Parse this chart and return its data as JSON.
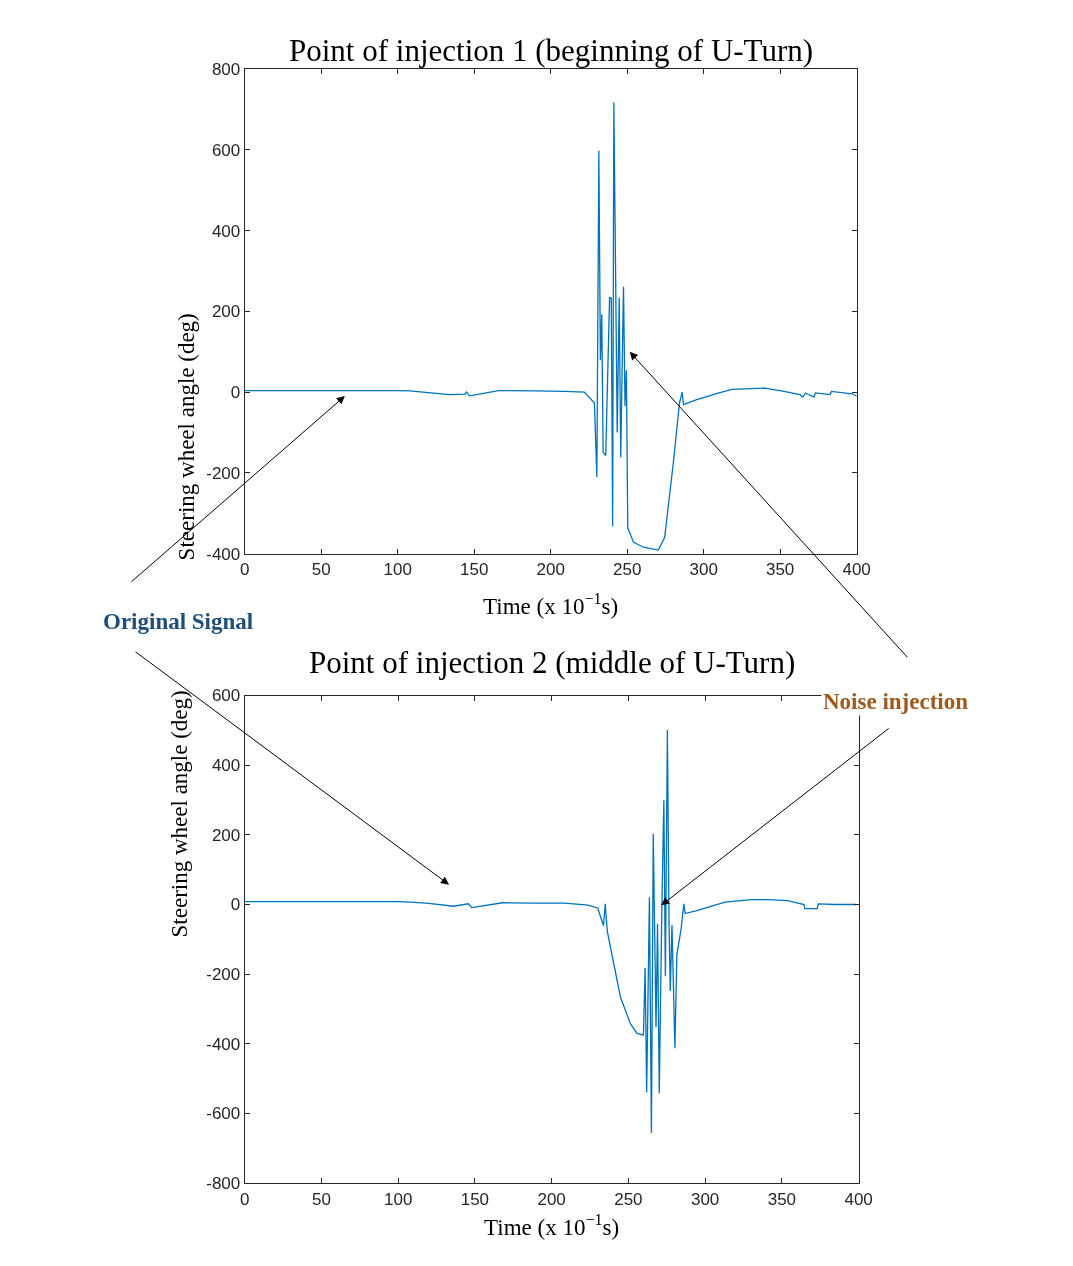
{
  "chart_data": [
    {
      "type": "line",
      "title": "Point of injection 1 (beginning of U-Turn)",
      "xlabel": "Time (x 10$^{−1}$s)",
      "ylabel": "Steering wheel angle (deg)",
      "series": [
        {
          "color": "#0072bd",
          "x": [
            0,
            50,
            100,
            108,
            120,
            134,
            144,
            145,
            147,
            166,
            190,
            209,
            222,
            228.6,
            230.2,
            231.5,
            232.5,
            233.4,
            234.3,
            236,
            238.5,
            239.6,
            240.5,
            241.3,
            243.5,
            244.8,
            245.8,
            247.6,
            248.6,
            249.5,
            250.4,
            254.2,
            260.7,
            270.3,
            274.5,
            280,
            284.2,
            286,
            286.8,
            295,
            310,
            318.5,
            340,
            352.5,
            363,
            364.8,
            366.5,
            372,
            373,
            382.7,
            383.5,
            397,
            400
          ],
          "values": [
            4,
            4,
            4,
            3,
            -1,
            -6,
            -5,
            0,
            -9,
            4,
            3,
            2,
            0,
            -27,
            -210,
            598,
            79,
            193,
            -149,
            -157,
            234,
            233,
            -332,
            717,
            -100,
            234,
            -161,
            261,
            -34,
            54,
            -336,
            -372,
            -384,
            -391,
            -360,
            -181,
            -27,
            0,
            -31,
            -19,
            -2,
            7,
            10,
            2,
            -6,
            -12,
            -2,
            -12,
            -2,
            -6,
            2,
            -4,
            -10
          ]
        }
      ],
      "xlim": [
        0,
        400
      ],
      "xticks": [
        0,
        50,
        100,
        150,
        200,
        250,
        300,
        350,
        400
      ],
      "ylim": [
        -400,
        800
      ],
      "yticks": [
        -400,
        -200,
        0,
        200,
        400,
        600,
        800
      ],
      "annotations": [
        "Original Signal",
        "Noise injection"
      ]
    },
    {
      "type": "line",
      "title": "Point of injection 2 (middle of U-Turn)",
      "xlabel": "Time (x 10$^{−1}$s)",
      "ylabel": "Steering wheel angle (deg)",
      "series": [
        {
          "color": "#0072bd",
          "x": [
            0,
            50,
            100,
            108,
            120,
            136,
            145.7,
            148,
            168,
            190,
            208.6,
            223.6,
            230,
            233.8,
            234.9,
            236.3,
            240.6,
            244.9,
            251.3,
            255.6,
            259.8,
            260.9,
            261.9,
            263.7,
            265,
            266.2,
            268,
            269,
            270.1,
            271.8,
            273.1,
            274.1,
            275.4,
            276.5,
            277.3,
            278.4,
            280.3,
            281.6,
            284.4,
            286.1,
            287,
            294,
            313,
            330,
            341,
            353.7,
            364.4,
            365,
            373,
            373.8,
            384.6,
            398.5
          ],
          "values": [
            8,
            8,
            8,
            7,
            3,
            -5,
            2,
            -9,
            5,
            4,
            4,
            -2,
            -10,
            -61,
            2,
            -78,
            -173,
            -267,
            -342,
            -370,
            -375,
            -182,
            -540,
            21,
            -656,
            203,
            -352,
            -55,
            -542,
            -12,
            299,
            -206,
            501,
            -59,
            -248,
            -59,
            -413,
            -144,
            -69,
            2,
            -26,
            -18,
            7,
            14,
            14,
            11,
            0,
            -12,
            -12,
            2,
            0,
            0
          ]
        }
      ],
      "xlim": [
        0,
        400
      ],
      "xticks": [
        0,
        50,
        100,
        150,
        200,
        250,
        300,
        350,
        400
      ],
      "ylim": [
        -800,
        600
      ],
      "yticks": [
        -800,
        -600,
        -400,
        -200,
        0,
        200,
        400,
        600
      ]
    }
  ]
}
